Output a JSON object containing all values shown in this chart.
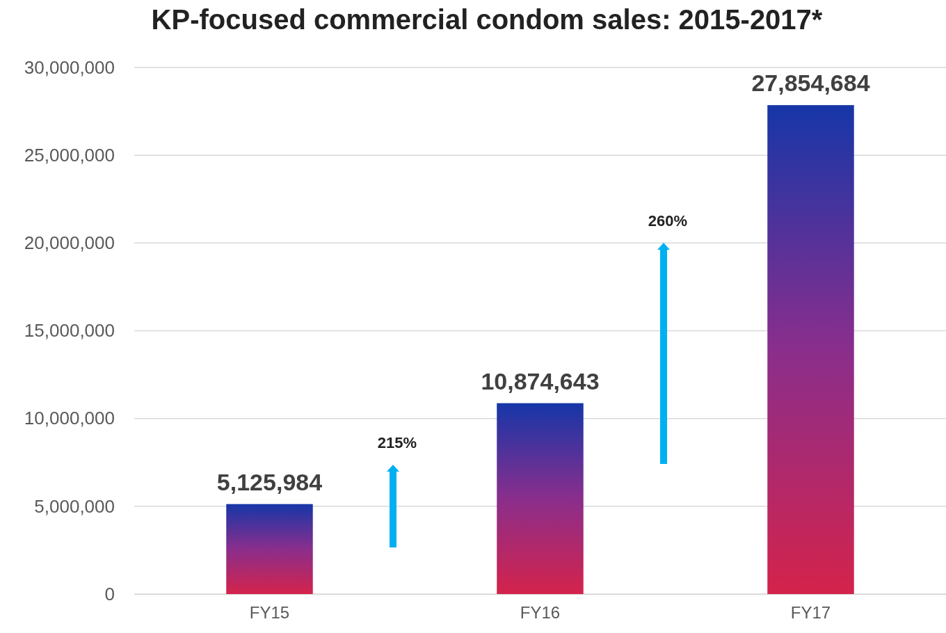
{
  "chart_data": {
    "type": "bar",
    "title": "KP-focused commercial condom sales: 2015-2017*",
    "categories": [
      "FY15",
      "FY16",
      "FY17"
    ],
    "values": [
      5125984,
      10874643,
      27854684
    ],
    "value_labels": [
      "5,125,984",
      "10,874,643",
      "27,854,684"
    ],
    "color": "#d4234b",
    "ylim": [
      0,
      30000000
    ],
    "yticks": [
      {
        "value": 0,
        "label": "0"
      },
      {
        "value": 5000000,
        "label": "5,000,000"
      },
      {
        "value": 10000000,
        "label": "10,000,000"
      },
      {
        "value": 15000000,
        "label": "15,000,000"
      },
      {
        "value": 20000000,
        "label": "20,000,000"
      },
      {
        "value": 25000000,
        "label": "25,000,000"
      },
      {
        "value": 30000000,
        "label": "30,000,000"
      }
    ],
    "grid": "y",
    "annotations": [
      "215%",
      "260%"
    ]
  }
}
